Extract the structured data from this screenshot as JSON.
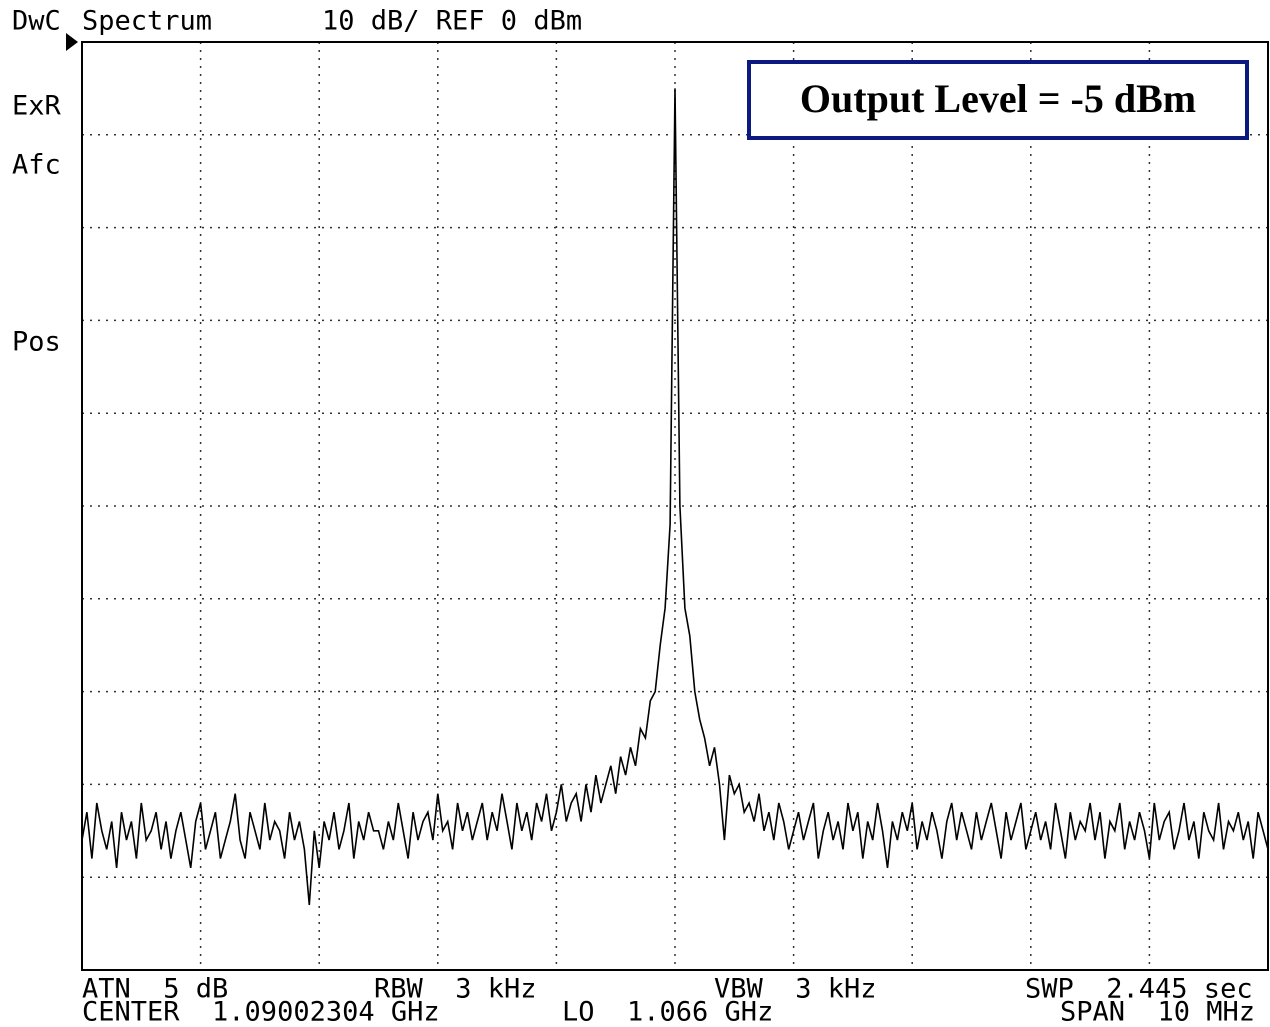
{
  "chart_data": {
    "type": "line",
    "title": "Spectrum",
    "subtitle": "10 dB/ REF 0 dBm",
    "status": [
      "DwC",
      "ExR",
      "Afc",
      "Pos"
    ],
    "annotation": "Output Level = -5 dBm",
    "footer": [
      "ATN  5 dB",
      "RBW  3 kHz",
      "VBW  3 kHz",
      "SWP  2.445 sec",
      "CENTER  1.09002304 GHz",
      "LO  1.066 GHz",
      "SPAN  10 MHz"
    ],
    "color": "#000000",
    "grid": true,
    "ylim": [
      -100,
      0
    ],
    "yticks": [
      -100,
      -90,
      -80,
      -70,
      -60,
      -50,
      -40,
      -30,
      -20,
      -10,
      0
    ],
    "values": [
      -86,
      -83,
      -88,
      -82,
      -85,
      -87,
      -84,
      -89,
      -83,
      -86,
      -84,
      -88,
      -82,
      -86,
      -85,
      -83,
      -87,
      -84,
      -88,
      -85,
      -83,
      -86,
      -89,
      -84,
      -82,
      -87,
      -85,
      -83,
      -88,
      -86,
      -84,
      -81,
      -86,
      -88,
      -83,
      -85,
      -87,
      -82,
      -86,
      -84,
      -85,
      -88,
      -83,
      -86,
      -84,
      -87,
      -93,
      -85,
      -89,
      -84,
      -86,
      -83,
      -87,
      -85,
      -82,
      -88,
      -84,
      -86,
      -83,
      -85,
      -85,
      -87,
      -84,
      -86,
      -82,
      -85,
      -88,
      -83,
      -86,
      -84,
      -83,
      -86,
      -81,
      -85,
      -84,
      -87,
      -82,
      -85,
      -83,
      -86,
      -84,
      -82,
      -86,
      -83,
      -85,
      -81,
      -84,
      -87,
      -82,
      -85,
      -83,
      -86,
      -82,
      -84,
      -81,
      -85,
      -83,
      -80,
      -84,
      -82,
      -81,
      -84,
      -80,
      -83,
      -79,
      -82,
      -80,
      -78,
      -81,
      -77,
      -79,
      -76,
      -78,
      -74,
      -75,
      -71,
      -70,
      -65,
      -61,
      -52,
      -5,
      -50,
      -61,
      -64,
      -70,
      -73,
      -75,
      -78,
      -76,
      -80,
      -86,
      -79,
      -81,
      -80,
      -83,
      -82,
      -84,
      -81,
      -85,
      -83,
      -86,
      -82,
      -84,
      -87,
      -85,
      -83,
      -86,
      -84,
      -82,
      -88,
      -85,
      -83,
      -86,
      -84,
      -87,
      -82,
      -85,
      -83,
      -88,
      -84,
      -86,
      -82,
      -85,
      -89,
      -84,
      -86,
      -83,
      -85,
      -82,
      -87,
      -84,
      -86,
      -83,
      -85,
      -88,
      -84,
      -82,
      -86,
      -83,
      -85,
      -87,
      -83,
      -86,
      -84,
      -82,
      -85,
      -88,
      -83,
      -86,
      -84,
      -82,
      -87,
      -85,
      -83,
      -86,
      -84,
      -87,
      -82,
      -85,
      -88,
      -83,
      -86,
      -84,
      -85,
      -82,
      -86,
      -83,
      -88,
      -84,
      -85,
      -82,
      -87,
      -84,
      -86,
      -83,
      -85,
      -88,
      -82,
      -86,
      -84,
      -83,
      -87,
      -85,
      -82,
      -86,
      -84,
      -88,
      -83,
      -85,
      -86,
      -82,
      -87,
      -84,
      -85,
      -83,
      -86,
      -84,
      -88,
      -83,
      -85,
      -87
    ]
  }
}
